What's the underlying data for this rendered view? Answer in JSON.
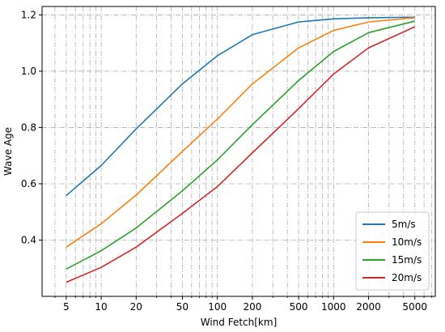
{
  "chart_data": {
    "type": "line",
    "xscale": "log",
    "xlabel": "Wind Fetch[km]",
    "ylabel": "Wave Age",
    "xlim": [
      3.1,
      7500
    ],
    "ylim": [
      0.2,
      1.23
    ],
    "grid": true,
    "legend_position": "bottom-right",
    "x_ticks": [
      5,
      10,
      20,
      50,
      100,
      200,
      500,
      1000,
      2000,
      5000
    ],
    "x_tick_labels": [
      "5",
      "10",
      "20",
      "50",
      "100",
      "200",
      "500",
      "1000",
      "2000",
      "5000"
    ],
    "y_ticks": [
      0.4,
      0.6,
      0.8,
      1.0,
      1.2
    ],
    "y_tick_labels": [
      "0.4",
      "0.6",
      "0.8",
      "1.0",
      "1.2"
    ],
    "x": [
      5,
      10,
      20,
      50,
      100,
      200,
      500,
      1000,
      2000,
      5000
    ],
    "series": [
      {
        "name": "5m/s",
        "color": "#1f77b4",
        "values": [
          0.558,
          0.665,
          0.795,
          0.955,
          1.055,
          1.13,
          1.175,
          1.186,
          1.19,
          1.192
        ]
      },
      {
        "name": "10m/s",
        "color": "#ff7f0e",
        "values": [
          0.375,
          0.458,
          0.56,
          0.715,
          0.83,
          0.955,
          1.083,
          1.145,
          1.175,
          1.19
        ]
      },
      {
        "name": "15m/s",
        "color": "#2ca02c",
        "values": [
          0.297,
          0.362,
          0.443,
          0.575,
          0.685,
          0.81,
          0.967,
          1.07,
          1.137,
          1.178
        ]
      },
      {
        "name": "20m/s",
        "color": "#d62728",
        "values": [
          0.25,
          0.303,
          0.375,
          0.495,
          0.59,
          0.71,
          0.867,
          0.99,
          1.083,
          1.158
        ]
      }
    ]
  }
}
